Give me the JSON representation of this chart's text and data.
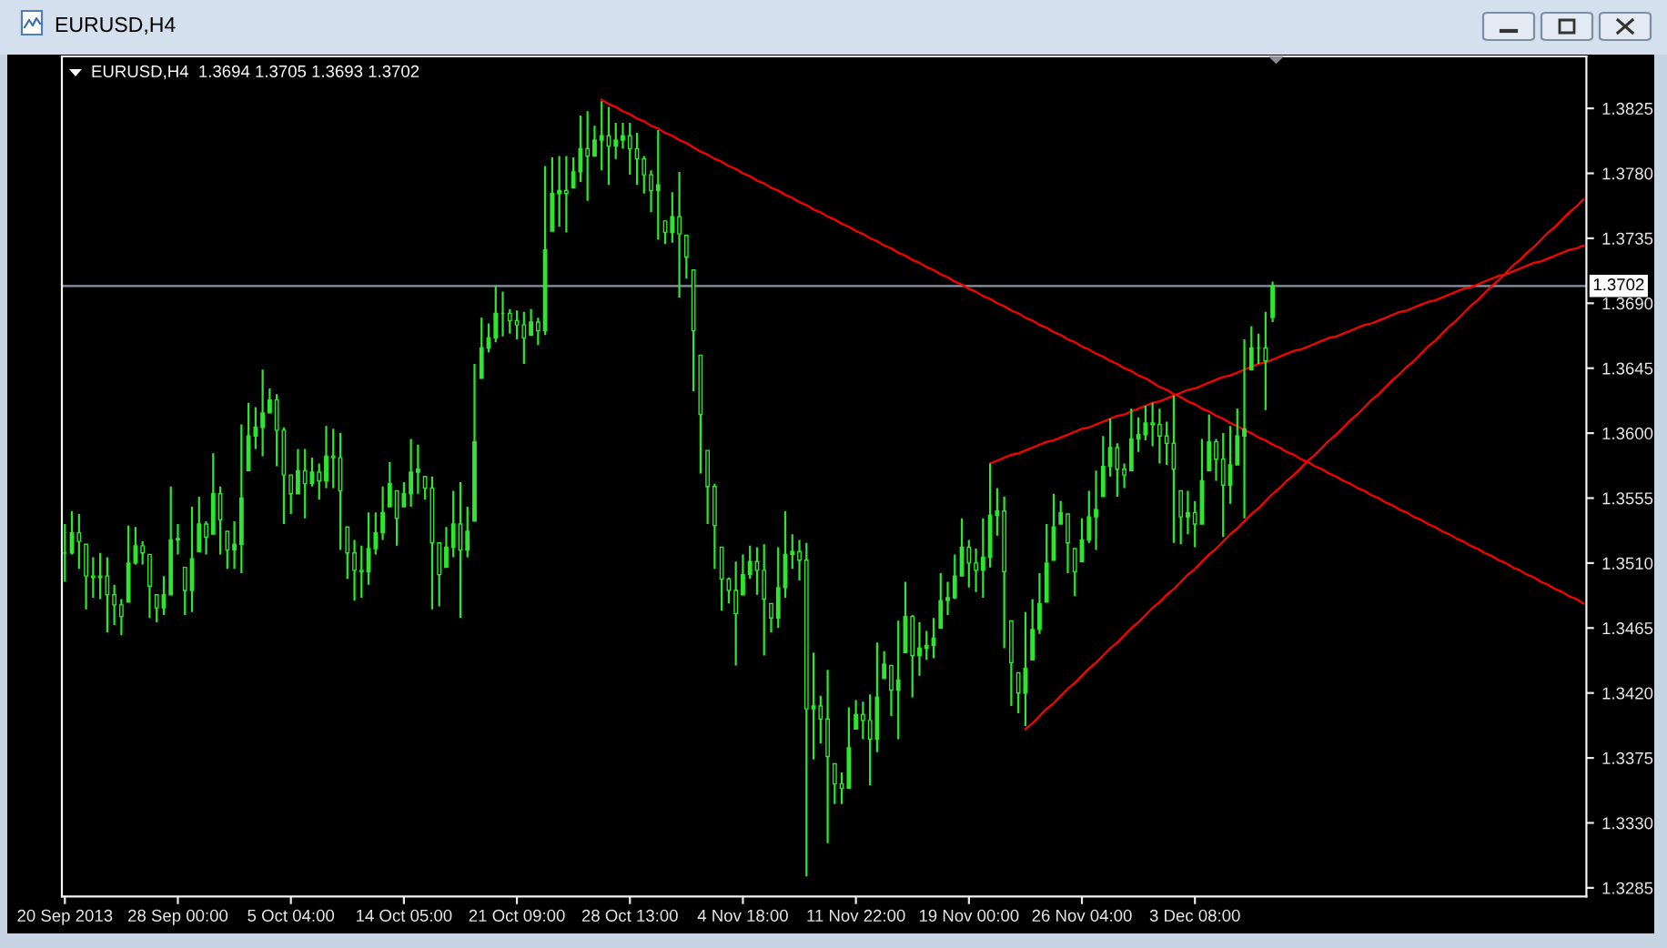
{
  "chart_data": {
    "type": "candlestick",
    "title": "EURUSD,H4",
    "subtitle": "EURUSD,H4  1.3694 1.3705 1.3693 1.3702",
    "categories": [
      "20 Sep 2013",
      null,
      null,
      null,
      null,
      null,
      null,
      null,
      null,
      null,
      null,
      null,
      null,
      null,
      null,
      null,
      "28 Sep 00:00",
      null,
      null,
      null,
      null,
      null,
      null,
      null,
      null,
      null,
      null,
      null,
      null,
      null,
      null,
      null,
      "5 Oct 04:00",
      null,
      null,
      null,
      null,
      null,
      null,
      null,
      null,
      null,
      null,
      null,
      null,
      null,
      null,
      null,
      "14 Oct 05:00",
      null,
      null,
      null,
      null,
      null,
      null,
      null,
      null,
      null,
      null,
      null,
      null,
      null,
      null,
      null,
      "21 Oct 09:00",
      null,
      null,
      null,
      null,
      null,
      null,
      null,
      null,
      null,
      null,
      null,
      null,
      null,
      null,
      null,
      "28 Oct 13:00",
      null,
      null,
      null,
      null,
      null,
      null,
      null,
      null,
      null,
      null,
      null,
      null,
      null,
      null,
      null,
      "4 Nov 18:00",
      null,
      null,
      null,
      null,
      null,
      null,
      null,
      null,
      null,
      null,
      null,
      null,
      null,
      null,
      null,
      "11 Nov 22:00",
      null,
      null,
      null,
      null,
      null,
      null,
      null,
      null,
      null,
      null,
      null,
      null,
      null,
      null,
      null,
      "19 Nov 00:00",
      null,
      null,
      null,
      null,
      null,
      null,
      null,
      null,
      null,
      null,
      null,
      null,
      null,
      null,
      null,
      "26 Nov 04:00",
      null,
      null,
      null,
      null,
      null,
      null,
      null,
      null,
      null,
      null,
      null,
      null,
      null,
      null,
      null,
      "3 Dec 08:00",
      null,
      null,
      null,
      null,
      null,
      null,
      null,
      null,
      null,
      null,
      null,
      null,
      null,
      null,
      null,
      null,
      null,
      null,
      null,
      null,
      null,
      null,
      null,
      null,
      null,
      null,
      null,
      null,
      null,
      null,
      null,
      null,
      null,
      null,
      null,
      null,
      null,
      null,
      null,
      null,
      null,
      null,
      null,
      null,
      null,
      null,
      null,
      null,
      null,
      null,
      null,
      null,
      null,
      null,
      null
    ],
    "ylim": [
      1.3279,
      1.3861
    ],
    "yticks": [
      {
        "value": 1.3825,
        "label": "1.3825"
      },
      {
        "value": 1.378,
        "label": "1.3780"
      },
      {
        "value": 1.3735,
        "label": "1.3735"
      },
      {
        "value": 1.369,
        "label": "1.3690"
      },
      {
        "value": 1.3645,
        "label": "1.3645"
      },
      {
        "value": 1.36,
        "label": "1.3600"
      },
      {
        "value": 1.3555,
        "label": "1.3555"
      },
      {
        "value": 1.351,
        "label": "1.3510"
      },
      {
        "value": 1.3465,
        "label": "1.3465"
      },
      {
        "value": 1.342,
        "label": "1.3420"
      },
      {
        "value": 1.3375,
        "label": "1.3375"
      },
      {
        "value": 1.333,
        "label": "1.3330"
      },
      {
        "value": 1.3285,
        "label": "1.3285"
      }
    ],
    "ref_lines": [
      {
        "axis": "y",
        "value": 1.3702,
        "label": "1.3702",
        "color": "#8a94a6"
      }
    ],
    "series": [
      {
        "color": "#2ee62e",
        "ohlc": [
          [
            1.3517,
            1.3537,
            1.3497,
            1.3517
          ],
          [
            1.3517,
            1.3546,
            1.3516,
            1.3531
          ],
          [
            1.3531,
            1.3544,
            1.3506,
            1.3525
          ],
          [
            1.3523,
            1.3523,
            1.3478,
            1.3501
          ],
          [
            1.3501,
            1.3514,
            1.3486,
            1.35
          ],
          [
            1.35,
            1.3517,
            1.3485,
            1.3501
          ],
          [
            1.3501,
            1.3514,
            1.3462,
            1.3488
          ],
          [
            1.3488,
            1.3495,
            1.3467,
            1.3481
          ],
          [
            1.3481,
            1.3485,
            1.346,
            1.3473
          ],
          [
            1.3483,
            1.3536,
            1.3483,
            1.351
          ],
          [
            1.351,
            1.3535,
            1.3509,
            1.3522
          ],
          [
            1.3522,
            1.3525,
            1.3509,
            1.3517
          ],
          [
            1.3516,
            1.3516,
            1.3472,
            1.3494
          ],
          [
            1.3488,
            1.3488,
            1.3469,
            1.3479
          ],
          [
            1.3479,
            1.3501,
            1.3474,
            1.3488
          ],
          [
            1.3488,
            1.3563,
            1.3488,
            1.3526
          ],
          [
            1.3526,
            1.3537,
            1.3516,
            1.3527
          ],
          [
            1.3507,
            1.3507,
            1.3474,
            1.3491
          ],
          [
            1.3491,
            1.3549,
            1.3476,
            1.3513
          ],
          [
            1.3518,
            1.3556,
            1.3518,
            1.3537
          ],
          [
            1.3537,
            1.3539,
            1.3516,
            1.3528
          ],
          [
            1.353,
            1.3586,
            1.353,
            1.3558
          ],
          [
            1.3558,
            1.3563,
            1.3516,
            1.354
          ],
          [
            1.3532,
            1.3532,
            1.3506,
            1.3519
          ],
          [
            1.3519,
            1.3539,
            1.3506,
            1.3523
          ],
          [
            1.3523,
            1.3606,
            1.3503,
            1.3555
          ],
          [
            1.3574,
            1.3621,
            1.3574,
            1.3598
          ],
          [
            1.3598,
            1.3618,
            1.3589,
            1.3604
          ],
          [
            1.3604,
            1.3644,
            1.3584,
            1.3614
          ],
          [
            1.3614,
            1.3631,
            1.3614,
            1.3623
          ],
          [
            1.3623,
            1.3627,
            1.3577,
            1.3602
          ],
          [
            1.3602,
            1.3604,
            1.3537,
            1.3571
          ],
          [
            1.3571,
            1.3571,
            1.3544,
            1.3558
          ],
          [
            1.3558,
            1.3589,
            1.3558,
            1.3574
          ],
          [
            1.3574,
            1.3589,
            1.3541,
            1.3565
          ],
          [
            1.3565,
            1.3583,
            1.3563,
            1.3573
          ],
          [
            1.3573,
            1.3579,
            1.3554,
            1.3567
          ],
          [
            1.3567,
            1.3605,
            1.3562,
            1.3584
          ],
          [
            1.3584,
            1.3603,
            1.3562,
            1.3583
          ],
          [
            1.3583,
            1.36,
            1.3519,
            1.356
          ],
          [
            1.3535,
            1.3535,
            1.3499,
            1.3517
          ],
          [
            1.3517,
            1.3526,
            1.3484,
            1.3505
          ],
          [
            1.3505,
            1.3522,
            1.3486,
            1.3504
          ],
          [
            1.3504,
            1.3545,
            1.3495,
            1.352
          ],
          [
            1.352,
            1.3545,
            1.3516,
            1.3531
          ],
          [
            1.3531,
            1.3563,
            1.3526,
            1.3545
          ],
          [
            1.3549,
            1.358,
            1.3549,
            1.3565
          ],
          [
            1.356,
            1.356,
            1.3522,
            1.3541
          ],
          [
            1.3549,
            1.3566,
            1.3549,
            1.3558
          ],
          [
            1.3558,
            1.3596,
            1.3549,
            1.3573
          ],
          [
            1.3573,
            1.3592,
            1.3558,
            1.3575
          ],
          [
            1.357,
            1.357,
            1.3554,
            1.3562
          ],
          [
            1.3562,
            1.357,
            1.3478,
            1.3524
          ],
          [
            1.3524,
            1.3524,
            1.348,
            1.3502
          ],
          [
            1.3507,
            1.3535,
            1.3507,
            1.3521
          ],
          [
            1.3521,
            1.356,
            1.3514,
            1.3537
          ],
          [
            1.3537,
            1.3566,
            1.3472,
            1.3519
          ],
          [
            1.3519,
            1.3549,
            1.3514,
            1.3532
          ],
          [
            1.3539,
            1.3648,
            1.3539,
            1.3594
          ],
          [
            1.3638,
            1.368,
            1.3638,
            1.3659
          ],
          [
            1.3659,
            1.3676,
            1.3656,
            1.3666
          ],
          [
            1.3666,
            1.3702,
            1.3663,
            1.3683
          ],
          [
            1.3683,
            1.3698,
            1.3667,
            1.3683
          ],
          [
            1.3683,
            1.3686,
            1.3669,
            1.3678
          ],
          [
            1.3678,
            1.3685,
            1.3665,
            1.3675
          ],
          [
            1.3675,
            1.3684,
            1.3648,
            1.3666
          ],
          [
            1.3668,
            1.3686,
            1.3668,
            1.3677
          ],
          [
            1.3677,
            1.368,
            1.3661,
            1.3671
          ],
          [
            1.3671,
            1.3785,
            1.3668,
            1.3727
          ],
          [
            1.374,
            1.3791,
            1.374,
            1.3766
          ],
          [
            1.3766,
            1.3792,
            1.3743,
            1.3768
          ],
          [
            1.3768,
            1.3792,
            1.3739,
            1.3766
          ],
          [
            1.377,
            1.3791,
            1.377,
            1.3781
          ],
          [
            1.3781,
            1.382,
            1.3774,
            1.3797
          ],
          [
            1.3797,
            1.3823,
            1.3761,
            1.3792
          ],
          [
            1.3792,
            1.3813,
            1.3792,
            1.3803
          ],
          [
            1.3803,
            1.383,
            1.3782,
            1.3806
          ],
          [
            1.3806,
            1.3826,
            1.3772,
            1.3799
          ],
          [
            1.3799,
            1.3815,
            1.379,
            1.3803
          ],
          [
            1.3803,
            1.3815,
            1.3797,
            1.3806
          ],
          [
            1.3806,
            1.3815,
            1.3779,
            1.3797
          ],
          [
            1.3797,
            1.3808,
            1.3772,
            1.379
          ],
          [
            1.379,
            1.3792,
            1.3766,
            1.3779
          ],
          [
            1.3779,
            1.3782,
            1.3753,
            1.3768
          ],
          [
            1.3768,
            1.381,
            1.3734,
            1.3772
          ],
          [
            1.3747,
            1.3747,
            1.3731,
            1.3739
          ],
          [
            1.3739,
            1.3767,
            1.3732,
            1.375
          ],
          [
            1.375,
            1.3781,
            1.3694,
            1.3738
          ],
          [
            1.3737,
            1.3737,
            1.3707,
            1.3722
          ],
          [
            1.3713,
            1.3713,
            1.3629,
            1.3671
          ],
          [
            1.3654,
            1.3654,
            1.3572,
            1.3613
          ],
          [
            1.3588,
            1.3588,
            1.3537,
            1.3563
          ],
          [
            1.3563,
            1.3565,
            1.3506,
            1.3536
          ],
          [
            1.3521,
            1.3521,
            1.3477,
            1.3499
          ],
          [
            1.3499,
            1.35,
            1.3482,
            1.3491
          ],
          [
            1.3491,
            1.3511,
            1.3439,
            1.3475
          ],
          [
            1.3488,
            1.3516,
            1.3488,
            1.3502
          ],
          [
            1.3502,
            1.3522,
            1.3499,
            1.3511
          ],
          [
            1.3511,
            1.3521,
            1.3488,
            1.3505
          ],
          [
            1.3505,
            1.3523,
            1.3446,
            1.3485
          ],
          [
            1.3482,
            1.3482,
            1.3462,
            1.3472
          ],
          [
            1.3472,
            1.3521,
            1.3465,
            1.3493
          ],
          [
            1.3493,
            1.3546,
            1.3486,
            1.3516
          ],
          [
            1.3516,
            1.353,
            1.3506,
            1.3518
          ],
          [
            1.3518,
            1.3526,
            1.3498,
            1.3512
          ],
          [
            1.3512,
            1.3524,
            1.3293,
            1.3409
          ],
          [
            1.3409,
            1.3448,
            1.3374,
            1.3411
          ],
          [
            1.3411,
            1.3418,
            1.3385,
            1.3402
          ],
          [
            1.3402,
            1.3436,
            1.3316,
            1.3376
          ],
          [
            1.3371,
            1.3371,
            1.3343,
            1.3357
          ],
          [
            1.3357,
            1.3365,
            1.3343,
            1.3354
          ],
          [
            1.3354,
            1.341,
            1.3354,
            1.3382
          ],
          [
            1.3395,
            1.3415,
            1.3395,
            1.3405
          ],
          [
            1.3405,
            1.3414,
            1.3388,
            1.3401
          ],
          [
            1.3401,
            1.3419,
            1.3356,
            1.3388
          ],
          [
            1.3388,
            1.3455,
            1.3379,
            1.3417
          ],
          [
            1.343,
            1.3449,
            1.343,
            1.344
          ],
          [
            1.3439,
            1.3439,
            1.3404,
            1.3422
          ],
          [
            1.3422,
            1.347,
            1.3388,
            1.3429
          ],
          [
            1.3448,
            1.3497,
            1.3448,
            1.3473
          ],
          [
            1.3473,
            1.3474,
            1.3417,
            1.3446
          ],
          [
            1.3446,
            1.3469,
            1.3432,
            1.3451
          ],
          [
            1.3451,
            1.3463,
            1.3443,
            1.3453
          ],
          [
            1.3453,
            1.3472,
            1.3444,
            1.3458
          ],
          [
            1.3465,
            1.3503,
            1.3465,
            1.3484
          ],
          [
            1.3484,
            1.3497,
            1.3474,
            1.3486
          ],
          [
            1.3486,
            1.3516,
            1.3485,
            1.3501
          ],
          [
            1.3501,
            1.3541,
            1.3501,
            1.3521
          ],
          [
            1.3521,
            1.3526,
            1.3493,
            1.351
          ],
          [
            1.351,
            1.352,
            1.349,
            1.3505
          ],
          [
            1.3505,
            1.3541,
            1.3486,
            1.3514
          ],
          [
            1.3514,
            1.3579,
            1.3507,
            1.3543
          ],
          [
            1.3543,
            1.3562,
            1.3529,
            1.3546
          ],
          [
            1.3546,
            1.3556,
            1.3451,
            1.3504
          ],
          [
            1.347,
            1.347,
            1.3411,
            1.3441
          ],
          [
            1.3434,
            1.3434,
            1.3406,
            1.342
          ],
          [
            1.342,
            1.3476,
            1.3397,
            1.3437
          ],
          [
            1.3443,
            1.3485,
            1.3443,
            1.3464
          ],
          [
            1.3464,
            1.3503,
            1.3461,
            1.3482
          ],
          [
            1.3483,
            1.3537,
            1.3483,
            1.351
          ],
          [
            1.3512,
            1.3558,
            1.3512,
            1.3535
          ],
          [
            1.3537,
            1.3553,
            1.3537,
            1.3545
          ],
          [
            1.3544,
            1.3544,
            1.3503,
            1.3524
          ],
          [
            1.352,
            1.352,
            1.3487,
            1.3504
          ],
          [
            1.3511,
            1.3541,
            1.3511,
            1.3526
          ],
          [
            1.3526,
            1.356,
            1.3524,
            1.3542
          ],
          [
            1.3542,
            1.3574,
            1.3519,
            1.3547
          ],
          [
            1.3556,
            1.3598,
            1.3556,
            1.3577
          ],
          [
            1.3577,
            1.361,
            1.357,
            1.359
          ],
          [
            1.359,
            1.3593,
            1.3556,
            1.3575
          ],
          [
            1.3575,
            1.3579,
            1.3562,
            1.3571
          ],
          [
            1.3574,
            1.3617,
            1.3574,
            1.3596
          ],
          [
            1.3596,
            1.3611,
            1.3587,
            1.3599
          ],
          [
            1.3599,
            1.3619,
            1.3595,
            1.3607
          ],
          [
            1.3607,
            1.3621,
            1.3591,
            1.3606
          ],
          [
            1.3606,
            1.3617,
            1.3579,
            1.3598
          ],
          [
            1.3598,
            1.3608,
            1.3578,
            1.3593
          ],
          [
            1.3593,
            1.3626,
            1.3524,
            1.3575
          ],
          [
            1.356,
            1.356,
            1.3523,
            1.3542
          ],
          [
            1.3542,
            1.356,
            1.353,
            1.3545
          ],
          [
            1.3545,
            1.3553,
            1.3521,
            1.3537
          ],
          [
            1.3537,
            1.3596,
            1.3537,
            1.3567
          ],
          [
            1.3574,
            1.3613,
            1.3574,
            1.3594
          ],
          [
            1.3594,
            1.3596,
            1.3567,
            1.3582
          ],
          [
            1.3582,
            1.36,
            1.3528,
            1.3564
          ],
          [
            1.3564,
            1.3605,
            1.3551,
            1.3578
          ],
          [
            1.3578,
            1.3617,
            1.3578,
            1.3598
          ],
          [
            1.3598,
            1.3665,
            1.3541,
            1.3603
          ],
          [
            1.3644,
            1.3674,
            1.3644,
            1.3659
          ],
          [
            1.3659,
            1.3669,
            1.3648,
            1.3659
          ],
          [
            1.3659,
            1.3684,
            1.3616,
            1.365
          ],
          [
            1.368,
            1.3705,
            1.3677,
            1.3702
          ],
          null,
          null,
          null,
          null,
          null,
          null,
          null,
          null,
          null,
          null,
          null,
          null,
          null,
          null,
          null,
          null,
          null,
          null,
          null,
          null,
          null,
          null,
          null,
          null,
          null,
          null,
          null,
          null,
          null,
          null,
          null,
          null,
          null,
          null,
          null,
          null,
          null,
          null,
          null,
          null,
          null,
          null,
          null,
          null
        ]
      },
      {
        "type": "line",
        "color": "#ff0000",
        "values": [
          null,
          null,
          null,
          null,
          null,
          null,
          null,
          null,
          null,
          null,
          null,
          null,
          null,
          null,
          null,
          null,
          null,
          null,
          null,
          null,
          null,
          null,
          null,
          null,
          null,
          null,
          null,
          null,
          null,
          null,
          null,
          null,
          null,
          null,
          null,
          null,
          null,
          null,
          null,
          null,
          null,
          null,
          null,
          null,
          null,
          null,
          null,
          null,
          null,
          null,
          null,
          null,
          null,
          null,
          null,
          null,
          null,
          null,
          null,
          null,
          null,
          null,
          null,
          null,
          null,
          null,
          null,
          null,
          null,
          null,
          null,
          null,
          null,
          null,
          null,
          null,
          1.3831,
          1.3828,
          1.3826,
          1.3823,
          1.3821,
          1.3818,
          1.3816,
          1.3813,
          1.3811,
          1.3808,
          1.3806,
          1.3803,
          1.3801,
          1.3798,
          1.3795,
          1.3793,
          1.379,
          1.3788,
          1.3785,
          1.3783,
          1.378,
          1.3778,
          1.3775,
          1.3773,
          1.377,
          1.3768,
          1.3765,
          1.3763,
          1.376,
          1.3758,
          1.3755,
          1.3753,
          1.375,
          1.3748,
          1.3745,
          1.3743,
          1.374,
          1.3738,
          1.3735,
          1.3733,
          1.373,
          1.3728,
          1.3725,
          1.3723,
          1.372,
          1.3718,
          1.3715,
          1.3713,
          1.371,
          1.3708,
          1.3705,
          1.3703,
          1.37,
          1.3698,
          1.3695,
          1.3693,
          1.369,
          1.3688,
          1.3685,
          1.3683,
          1.368,
          1.3678,
          1.3675,
          1.3673,
          1.367,
          1.3668,
          1.3665,
          1.3663,
          1.366,
          1.3658,
          1.3655,
          1.3653,
          1.365,
          1.3648,
          1.3645,
          1.3643,
          1.364,
          1.3638,
          1.3635,
          1.3632,
          1.363,
          1.3627,
          1.3625,
          1.3622,
          1.362,
          1.3617,
          1.3615,
          1.3612,
          1.361,
          1.3607,
          1.3605,
          1.3602,
          1.36,
          1.3597,
          1.3595,
          1.3592,
          1.359,
          1.3587,
          1.3585,
          1.3582,
          1.358,
          1.3577,
          1.3575,
          1.3572,
          1.357,
          1.3567,
          1.3565,
          1.3562,
          1.356,
          1.3557,
          1.3555,
          1.3552,
          1.355,
          1.3547,
          1.3545,
          1.3542,
          1.354,
          1.3537,
          1.3535,
          1.3532,
          1.353,
          1.3527,
          1.3525,
          1.3522,
          1.352,
          1.3517,
          1.3515,
          1.3512,
          1.351,
          1.3507,
          1.3505,
          1.3502,
          1.35,
          1.3497,
          1.3495,
          1.3492,
          1.349,
          1.3487,
          1.3485,
          1.3482
        ]
      },
      {
        "type": "line",
        "color": "#ff0000",
        "values": [
          null,
          null,
          null,
          null,
          null,
          null,
          null,
          null,
          null,
          null,
          null,
          null,
          null,
          null,
          null,
          null,
          null,
          null,
          null,
          null,
          null,
          null,
          null,
          null,
          null,
          null,
          null,
          null,
          null,
          null,
          null,
          null,
          null,
          null,
          null,
          null,
          null,
          null,
          null,
          null,
          null,
          null,
          null,
          null,
          null,
          null,
          null,
          null,
          null,
          null,
          null,
          null,
          null,
          null,
          null,
          null,
          null,
          null,
          null,
          null,
          null,
          null,
          null,
          null,
          null,
          null,
          null,
          null,
          null,
          null,
          null,
          null,
          null,
          null,
          null,
          null,
          null,
          null,
          null,
          null,
          null,
          null,
          null,
          null,
          null,
          null,
          null,
          null,
          null,
          null,
          null,
          null,
          null,
          null,
          null,
          null,
          null,
          null,
          null,
          null,
          null,
          null,
          null,
          null,
          null,
          null,
          null,
          null,
          null,
          null,
          null,
          null,
          null,
          null,
          null,
          null,
          null,
          null,
          null,
          null,
          null,
          null,
          null,
          null,
          null,
          null,
          null,
          null,
          null,
          null,
          null,
          1.3579,
          1.3581,
          1.3583,
          1.3585,
          1.3586,
          1.3588,
          1.359,
          1.3592,
          1.3594,
          1.3595,
          1.3597,
          1.3599,
          1.3601,
          1.3603,
          1.3604,
          1.3606,
          1.3608,
          1.361,
          1.3612,
          1.3613,
          1.3615,
          1.3617,
          1.3619,
          1.3621,
          1.3622,
          1.3624,
          1.3626,
          1.3628,
          1.363,
          1.3631,
          1.3633,
          1.3635,
          1.3637,
          1.3639,
          1.364,
          1.3642,
          1.3644,
          1.3646,
          1.3648,
          1.3649,
          1.3651,
          1.3653,
          1.3655,
          1.3657,
          1.3658,
          1.366,
          1.3662,
          1.3664,
          1.3666,
          1.3667,
          1.3669,
          1.3671,
          1.3673,
          1.3675,
          1.3676,
          1.3678,
          1.368,
          1.3682,
          1.3684,
          1.3685,
          1.3687,
          1.3689,
          1.3691,
          1.3692,
          1.3694,
          1.3696,
          1.3698,
          1.37,
          1.3701,
          1.3703,
          1.3705,
          1.3707,
          1.3709,
          1.371,
          1.3712,
          1.3714,
          1.3716,
          1.3718,
          1.3719,
          1.3721,
          1.3723,
          1.3725,
          1.3727,
          1.3728,
          1.373
        ]
      },
      {
        "type": "line",
        "color": "#ff0000",
        "values": [
          null,
          null,
          null,
          null,
          null,
          null,
          null,
          null,
          null,
          null,
          null,
          null,
          null,
          null,
          null,
          null,
          null,
          null,
          null,
          null,
          null,
          null,
          null,
          null,
          null,
          null,
          null,
          null,
          null,
          null,
          null,
          null,
          null,
          null,
          null,
          null,
          null,
          null,
          null,
          null,
          null,
          null,
          null,
          null,
          null,
          null,
          null,
          null,
          null,
          null,
          null,
          null,
          null,
          null,
          null,
          null,
          null,
          null,
          null,
          null,
          null,
          null,
          null,
          null,
          null,
          null,
          null,
          null,
          null,
          null,
          null,
          null,
          null,
          null,
          null,
          null,
          null,
          null,
          null,
          null,
          null,
          null,
          null,
          null,
          null,
          null,
          null,
          null,
          null,
          null,
          null,
          null,
          null,
          null,
          null,
          null,
          null,
          null,
          null,
          null,
          null,
          null,
          null,
          null,
          null,
          null,
          null,
          null,
          null,
          null,
          null,
          null,
          null,
          null,
          null,
          null,
          null,
          null,
          null,
          null,
          null,
          null,
          null,
          null,
          null,
          null,
          null,
          null,
          null,
          null,
          null,
          null,
          null,
          null,
          null,
          null,
          1.3395,
          1.3399,
          1.3404,
          1.3409,
          1.3413,
          1.3418,
          1.3423,
          1.3427,
          1.3432,
          1.3437,
          1.3441,
          1.3446,
          1.3451,
          1.3455,
          1.346,
          1.3465,
          1.3469,
          1.3474,
          1.3479,
          1.3483,
          1.3488,
          1.3492,
          1.3497,
          1.3502,
          1.3506,
          1.3511,
          1.3516,
          1.352,
          1.3525,
          1.353,
          1.3534,
          1.3539,
          1.3544,
          1.3548,
          1.3553,
          1.3558,
          1.3562,
          1.3567,
          1.3571,
          1.3576,
          1.3581,
          1.3585,
          1.359,
          1.3595,
          1.3599,
          1.3604,
          1.3609,
          1.3613,
          1.3618,
          1.3623,
          1.3627,
          1.3632,
          1.3637,
          1.3641,
          1.3646,
          1.365,
          1.3655,
          1.366,
          1.3664,
          1.3669,
          1.3674,
          1.3678,
          1.3683,
          1.3688,
          1.3692,
          1.3697,
          1.3702,
          1.3706,
          1.3711,
          1.3716,
          1.372,
          1.3725,
          1.3729,
          1.3734,
          1.3739,
          1.3743,
          1.3748,
          1.3753,
          1.3757,
          1.3762
        ]
      }
    ]
  }
}
